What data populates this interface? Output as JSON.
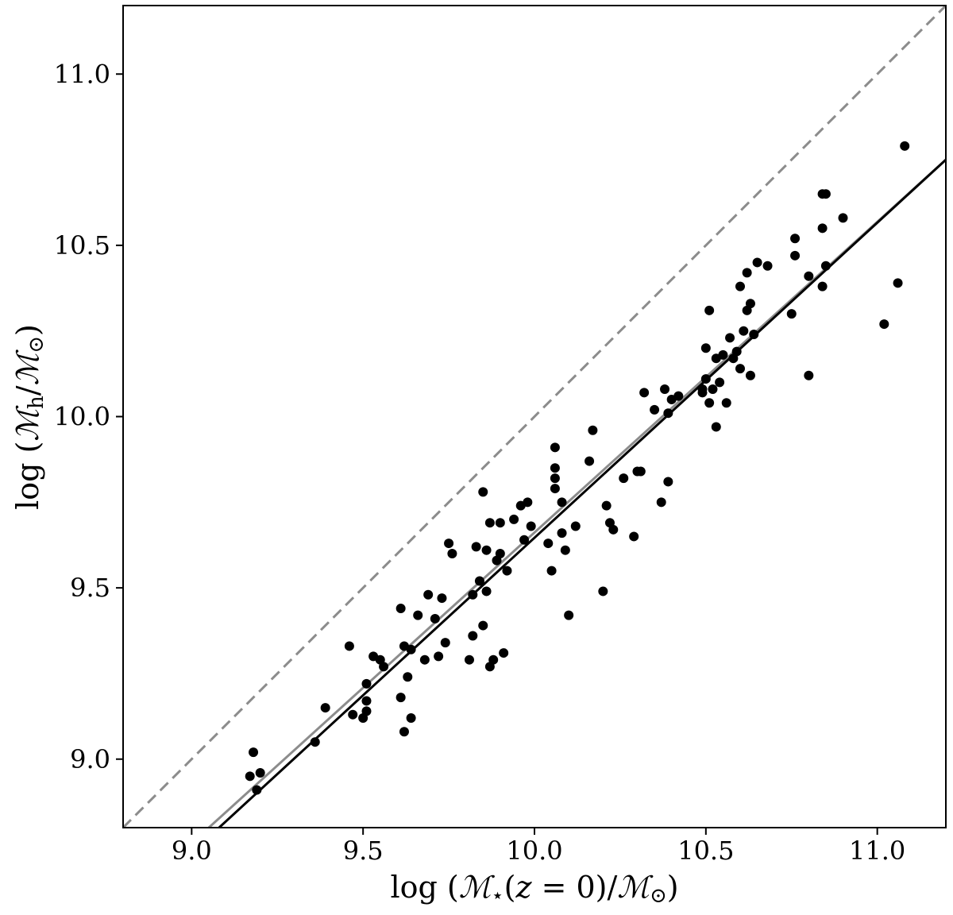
{
  "chart_data": {
    "type": "scatter",
    "title": "",
    "xlabel": "log (ℳ⋆(z = 0)/ℳ⊙)",
    "ylabel": "log (ℳh/ℳ⊙)",
    "xlim": [
      8.8,
      11.2
    ],
    "ylim": [
      8.8,
      11.2
    ],
    "x_ticks": [
      "9.0",
      "9.5",
      "10.0",
      "10.5",
      "11.0"
    ],
    "y_ticks": [
      "9.0",
      "9.5",
      "10.0",
      "10.5",
      "11.0"
    ],
    "x_tick_values": [
      9.0,
      9.5,
      10.0,
      10.5,
      11.0
    ],
    "y_tick_values": [
      9.0,
      9.5,
      10.0,
      10.5,
      11.0
    ],
    "grid": false,
    "legend": "none",
    "series": [
      {
        "kind": "points",
        "color": "#000000",
        "points": [
          [
            9.17,
            8.95
          ],
          [
            9.18,
            9.02
          ],
          [
            9.19,
            8.91
          ],
          [
            9.2,
            8.96
          ],
          [
            9.36,
            9.05
          ],
          [
            9.39,
            9.15
          ],
          [
            9.46,
            9.33
          ],
          [
            9.47,
            9.13
          ],
          [
            9.5,
            9.12
          ],
          [
            9.51,
            9.14
          ],
          [
            9.51,
            9.17
          ],
          [
            9.51,
            9.22
          ],
          [
            9.53,
            9.3
          ],
          [
            9.55,
            9.29
          ],
          [
            9.56,
            9.27
          ],
          [
            9.61,
            9.44
          ],
          [
            9.61,
            9.18
          ],
          [
            9.62,
            9.08
          ],
          [
            9.62,
            9.33
          ],
          [
            9.63,
            9.24
          ],
          [
            9.64,
            9.12
          ],
          [
            9.64,
            9.32
          ],
          [
            9.66,
            9.42
          ],
          [
            9.68,
            9.29
          ],
          [
            9.69,
            9.48
          ],
          [
            9.71,
            9.41
          ],
          [
            9.72,
            9.3
          ],
          [
            9.73,
            9.47
          ],
          [
            9.74,
            9.34
          ],
          [
            9.75,
            9.63
          ],
          [
            9.76,
            9.6
          ],
          [
            9.81,
            9.29
          ],
          [
            9.82,
            9.36
          ],
          [
            9.82,
            9.48
          ],
          [
            9.83,
            9.62
          ],
          [
            9.84,
            9.52
          ],
          [
            9.85,
            9.78
          ],
          [
            9.85,
            9.39
          ],
          [
            9.86,
            9.61
          ],
          [
            9.86,
            9.49
          ],
          [
            9.87,
            9.69
          ],
          [
            9.87,
            9.27
          ],
          [
            9.88,
            9.29
          ],
          [
            9.89,
            9.58
          ],
          [
            9.9,
            9.69
          ],
          [
            9.9,
            9.6
          ],
          [
            9.91,
            9.31
          ],
          [
            9.92,
            9.55
          ],
          [
            9.94,
            9.7
          ],
          [
            9.96,
            9.74
          ],
          [
            9.97,
            9.64
          ],
          [
            9.98,
            9.75
          ],
          [
            9.99,
            9.68
          ],
          [
            10.04,
            9.63
          ],
          [
            10.05,
            9.55
          ],
          [
            10.06,
            9.91
          ],
          [
            10.06,
            9.85
          ],
          [
            10.06,
            9.82
          ],
          [
            10.06,
            9.79
          ],
          [
            10.08,
            9.75
          ],
          [
            10.08,
            9.66
          ],
          [
            10.09,
            9.61
          ],
          [
            10.1,
            9.42
          ],
          [
            10.12,
            9.68
          ],
          [
            10.16,
            9.87
          ],
          [
            10.17,
            9.96
          ],
          [
            10.2,
            9.49
          ],
          [
            10.21,
            9.74
          ],
          [
            10.22,
            9.69
          ],
          [
            10.23,
            9.67
          ],
          [
            10.26,
            9.82
          ],
          [
            10.29,
            9.65
          ],
          [
            10.3,
            9.84
          ],
          [
            10.31,
            9.84
          ],
          [
            10.32,
            10.07
          ],
          [
            10.35,
            10.02
          ],
          [
            10.37,
            9.75
          ],
          [
            10.38,
            10.08
          ],
          [
            10.39,
            10.01
          ],
          [
            10.39,
            9.81
          ],
          [
            10.4,
            10.05
          ],
          [
            10.42,
            10.06
          ],
          [
            10.49,
            10.07
          ],
          [
            10.49,
            10.08
          ],
          [
            10.5,
            10.2
          ],
          [
            10.5,
            10.11
          ],
          [
            10.51,
            10.04
          ],
          [
            10.51,
            10.31
          ],
          [
            10.52,
            10.08
          ],
          [
            10.53,
            10.17
          ],
          [
            10.53,
            9.97
          ],
          [
            10.54,
            10.1
          ],
          [
            10.55,
            10.18
          ],
          [
            10.56,
            10.04
          ],
          [
            10.57,
            10.23
          ],
          [
            10.58,
            10.17
          ],
          [
            10.59,
            10.19
          ],
          [
            10.6,
            10.38
          ],
          [
            10.6,
            10.14
          ],
          [
            10.61,
            10.25
          ],
          [
            10.62,
            10.31
          ],
          [
            10.62,
            10.42
          ],
          [
            10.63,
            10.33
          ],
          [
            10.63,
            10.12
          ],
          [
            10.64,
            10.24
          ],
          [
            10.65,
            10.45
          ],
          [
            10.68,
            10.44
          ],
          [
            10.75,
            10.3
          ],
          [
            10.76,
            10.52
          ],
          [
            10.76,
            10.47
          ],
          [
            10.8,
            10.41
          ],
          [
            10.8,
            10.12
          ],
          [
            10.84,
            10.55
          ],
          [
            10.84,
            10.65
          ],
          [
            10.84,
            10.38
          ],
          [
            10.85,
            10.44
          ],
          [
            10.85,
            10.65
          ],
          [
            10.9,
            10.58
          ],
          [
            11.02,
            10.27
          ],
          [
            11.06,
            10.39
          ],
          [
            11.08,
            10.79
          ]
        ]
      },
      {
        "kind": "line",
        "style": "dashed",
        "color": "#8c8c8c",
        "x": [
          8.8,
          11.2
        ],
        "y": [
          8.8,
          11.2
        ]
      },
      {
        "kind": "line",
        "style": "solid",
        "color": "#8c8c8c",
        "x": [
          9.05,
          11.2
        ],
        "y": [
          8.8,
          10.75
        ]
      },
      {
        "kind": "line",
        "style": "solid",
        "color": "#000000",
        "x": [
          9.08,
          11.2
        ],
        "y": [
          8.8,
          10.75
        ]
      }
    ]
  }
}
